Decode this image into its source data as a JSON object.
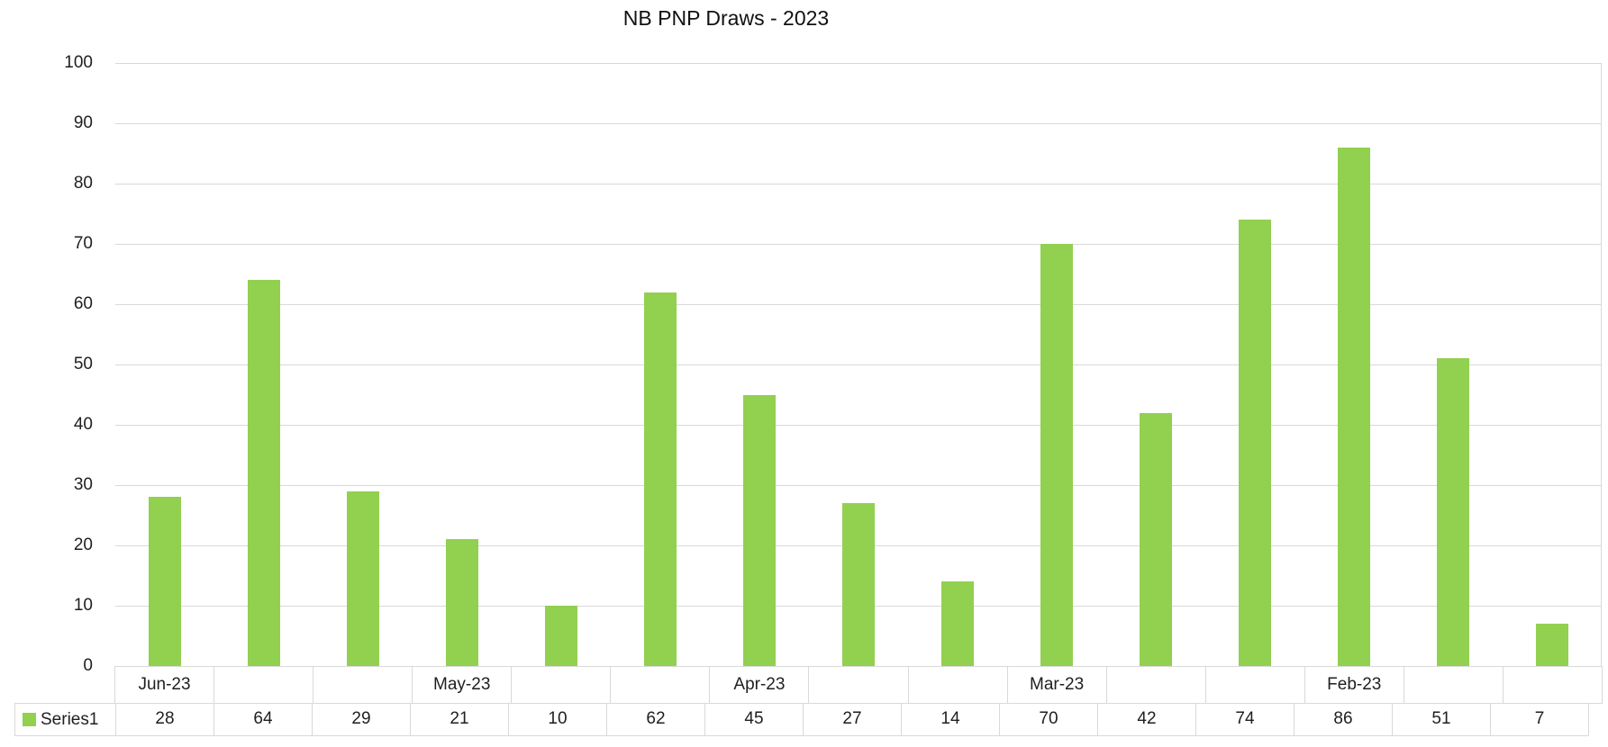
{
  "chart_data": {
    "type": "bar",
    "title": "NB PNP Draws - 2023",
    "categories": [
      "Jun-23",
      "",
      "",
      "May-23",
      "",
      "",
      "Apr-23",
      "",
      "",
      "Mar-23",
      "",
      "",
      "Feb-23",
      "",
      ""
    ],
    "series": [
      {
        "name": "Series1",
        "values": [
          28,
          64,
          29,
          21,
          10,
          62,
          45,
          27,
          14,
          70,
          42,
          74,
          86,
          51,
          7
        ]
      }
    ],
    "xlabel": "",
    "ylabel": "",
    "ylim": [
      0,
      100
    ],
    "yticks": [
      0,
      10,
      20,
      30,
      40,
      50,
      60,
      70,
      80,
      90,
      100
    ],
    "grid": "horizontal",
    "legend_position": "data-table-left",
    "data_table_shown": true,
    "colors": {
      "bar": "#92D050",
      "gridline": "#d9d9d9",
      "border": "#d9d9d9",
      "text": "#1f1f1f"
    }
  }
}
